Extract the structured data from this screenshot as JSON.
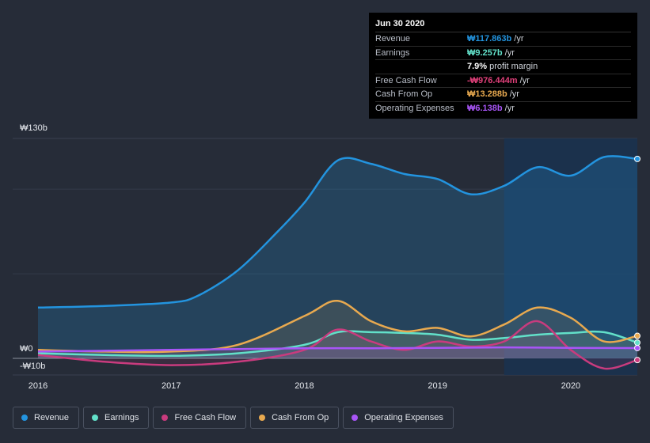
{
  "tooltip": {
    "date": "Jun 30 2020",
    "rows": [
      {
        "label": "Revenue",
        "value": "₩117.863b",
        "unit": "/yr",
        "color": "#2394df"
      },
      {
        "label": "Earnings",
        "value": "₩9.257b",
        "unit": "/yr",
        "color": "#62e0c9"
      },
      {
        "label": "",
        "value": "7.9%",
        "unit": "profit margin",
        "color": "#ffffff"
      },
      {
        "label": "Free Cash Flow",
        "value": "-₩976.444m",
        "unit": "/yr",
        "color": "#e0407a"
      },
      {
        "label": "Cash From Op",
        "value": "₩13.288b",
        "unit": "/yr",
        "color": "#e8a94f"
      },
      {
        "label": "Operating Expenses",
        "value": "₩6.138b",
        "unit": "/yr",
        "color": "#a855f7"
      }
    ]
  },
  "legend": [
    {
      "label": "Revenue",
      "color": "#2394df"
    },
    {
      "label": "Earnings",
      "color": "#62e0c9"
    },
    {
      "label": "Free Cash Flow",
      "color": "#c93b7e"
    },
    {
      "label": "Cash From Op",
      "color": "#e8a94f"
    },
    {
      "label": "Operating Expenses",
      "color": "#a855f7"
    }
  ],
  "chart_data": {
    "type": "area",
    "title": "",
    "xlabel": "",
    "ylabel": "",
    "y_unit": "₩b",
    "ylim": [
      -10,
      130
    ],
    "y_tick_labels": [
      "₩130b",
      "₩0",
      "-₩10b"
    ],
    "y_ticks": [
      130,
      0,
      -10
    ],
    "xlim": [
      2016.0,
      2020.5
    ],
    "x_tick_labels": [
      "2016",
      "2017",
      "2018",
      "2019",
      "2020"
    ],
    "x_ticks": [
      2016,
      2017,
      2018,
      2019,
      2020
    ],
    "highlight_region": [
      2019.5,
      2020.5
    ],
    "series": [
      {
        "name": "Revenue",
        "color": "#2394df",
        "x": [
          2016.0,
          2016.5,
          2017.0,
          2017.2,
          2017.5,
          2017.8,
          2018.0,
          2018.25,
          2018.5,
          2018.75,
          2019.0,
          2019.25,
          2019.5,
          2019.75,
          2020.0,
          2020.25,
          2020.5
        ],
        "values": [
          30,
          31,
          33,
          37,
          52,
          75,
          92,
          117,
          115,
          109,
          106,
          97,
          102,
          113,
          108,
          119,
          117.9
        ]
      },
      {
        "name": "Earnings",
        "color": "#62e0c9",
        "x": [
          2016.0,
          2016.5,
          2017.0,
          2017.5,
          2018.0,
          2018.25,
          2018.5,
          2018.75,
          2019.0,
          2019.25,
          2019.5,
          2019.75,
          2020.0,
          2020.25,
          2020.5
        ],
        "values": [
          3,
          2,
          1.5,
          3,
          8,
          15.5,
          15.5,
          15,
          14,
          11,
          12,
          14,
          15,
          15.5,
          9.3
        ]
      },
      {
        "name": "Free Cash Flow",
        "color": "#c93b7e",
        "x": [
          2016.0,
          2016.5,
          2017.0,
          2017.5,
          2018.0,
          2018.25,
          2018.5,
          2018.75,
          2019.0,
          2019.25,
          2019.5,
          2019.75,
          2020.0,
          2020.25,
          2020.5
        ],
        "values": [
          2,
          -2,
          -4,
          -2,
          5,
          17,
          10,
          5,
          10,
          7,
          10,
          22,
          5,
          -6,
          -1
        ]
      },
      {
        "name": "Cash From Op",
        "color": "#e8a94f",
        "x": [
          2016.0,
          2016.5,
          2017.0,
          2017.5,
          2018.0,
          2018.25,
          2018.5,
          2018.75,
          2019.0,
          2019.25,
          2019.5,
          2019.75,
          2020.0,
          2020.25,
          2020.5
        ],
        "values": [
          5,
          4,
          4,
          8,
          25,
          34,
          22,
          16,
          18,
          13,
          20,
          30,
          24,
          10,
          13.3
        ]
      },
      {
        "name": "Operating Expenses",
        "color": "#a855f7",
        "x": [
          2016.0,
          2016.5,
          2017.0,
          2017.5,
          2018.0,
          2018.5,
          2019.0,
          2019.5,
          2020.0,
          2020.5
        ],
        "values": [
          4,
          4.5,
          5,
          5.5,
          6,
          6,
          6.2,
          6.5,
          6.2,
          6.1
        ]
      }
    ]
  }
}
